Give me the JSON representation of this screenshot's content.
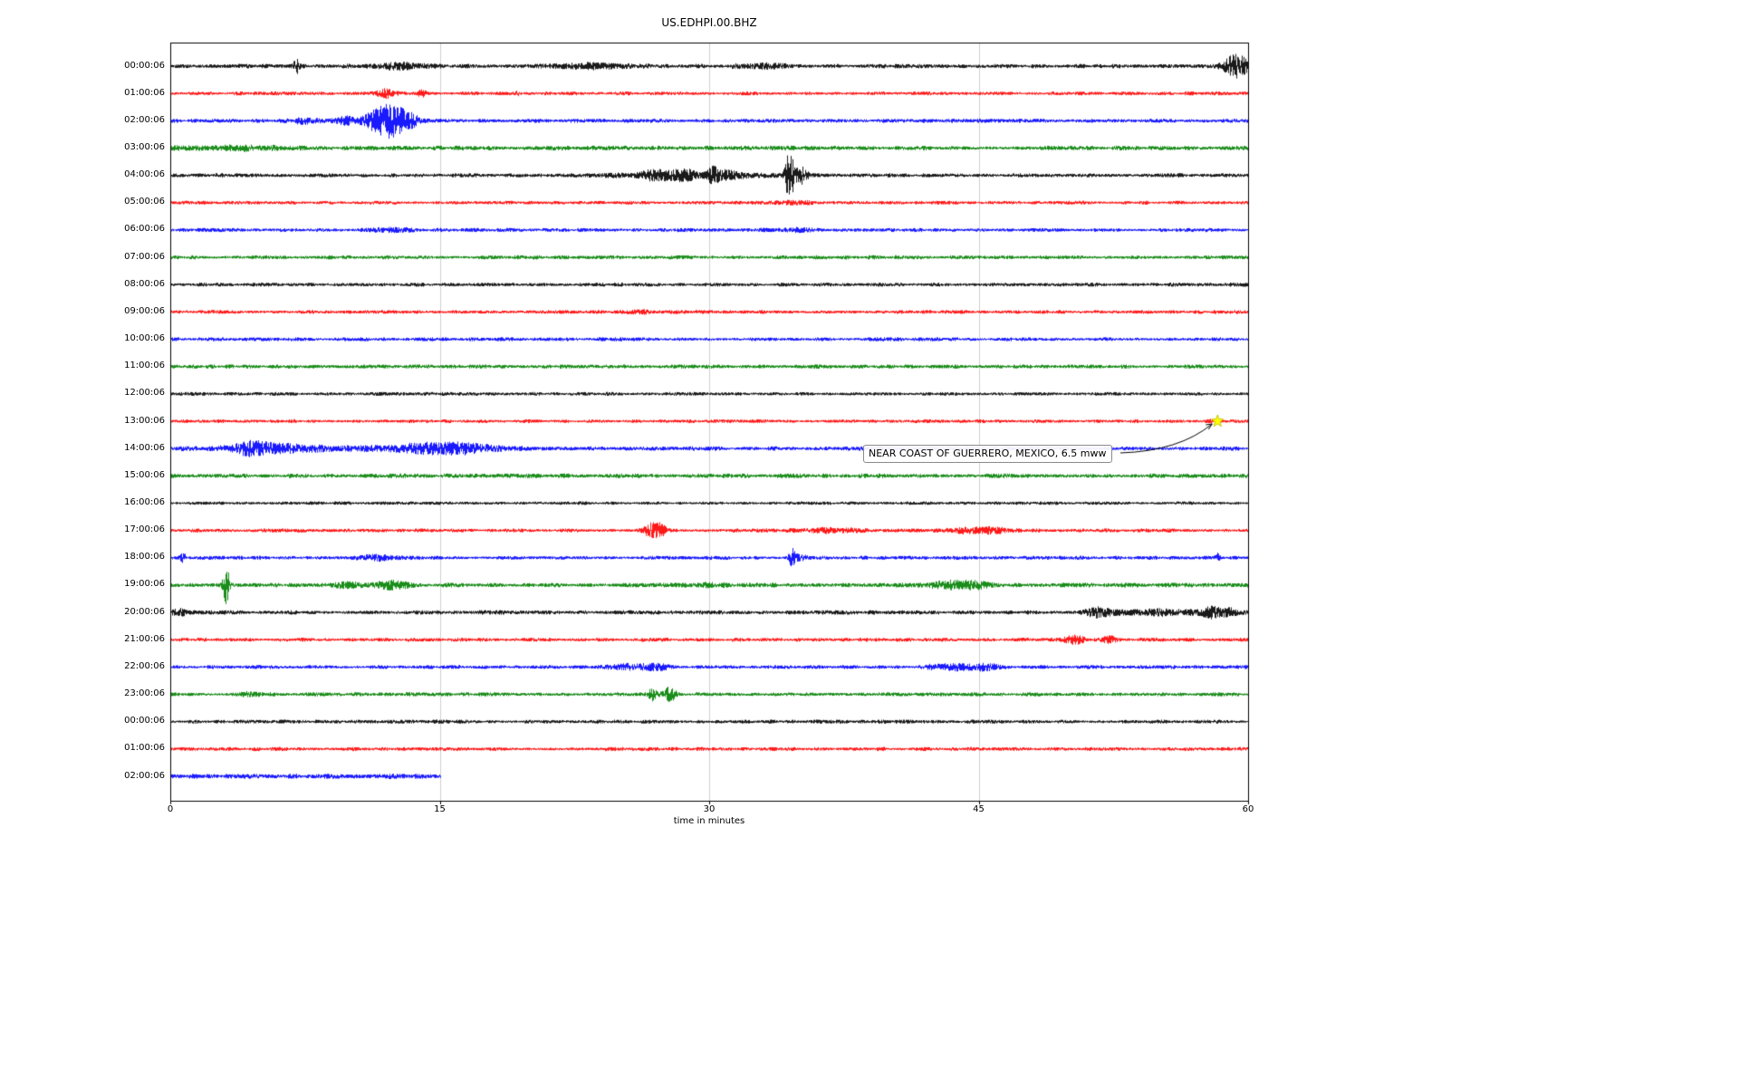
{
  "chart_data": {
    "type": "line",
    "title": "US.EDHPI.00.BHZ",
    "xlabel": "time in minutes",
    "xlim": [
      0,
      60
    ],
    "x_ticks": [
      0,
      15,
      30,
      45,
      60
    ],
    "grid": "vertical-only",
    "trace_colors": {
      "black": "#000000",
      "red": "#ff0000",
      "blue": "#0000ff",
      "green": "#008000"
    },
    "annotation": {
      "text": "NEAR COAST OF GUERRERO, MEXICO, 6.5 mww",
      "row_index": 13,
      "event_minute": 58.3,
      "marker": "star",
      "marker_color": "#ffff00"
    },
    "rows": [
      {
        "label": "00:00:06",
        "color": "#000000",
        "base": 2.0,
        "end": 60,
        "events": [
          {
            "t": 7.0,
            "w": 0.12,
            "a": 7
          },
          {
            "t": 12.7,
            "w": 1.1,
            "a": 3
          },
          {
            "t": 23.5,
            "w": 1.4,
            "a": 2.5
          },
          {
            "t": 33.0,
            "w": 1.0,
            "a": 2
          },
          {
            "t": 59.3,
            "w": 0.5,
            "a": 12
          }
        ]
      },
      {
        "label": "01:00:06",
        "color": "#ff0000",
        "base": 1.8,
        "end": 60,
        "events": [
          {
            "t": 12.0,
            "w": 0.3,
            "a": 5
          },
          {
            "t": 14.0,
            "w": 0.2,
            "a": 3
          },
          {
            "t": 19.3,
            "w": 0.1,
            "a": 2.5
          }
        ]
      },
      {
        "label": "02:00:06",
        "color": "#0000ff",
        "base": 1.9,
        "end": 60,
        "events": [
          {
            "t": 7.5,
            "w": 0.5,
            "a": 2.5
          },
          {
            "t": 9.7,
            "w": 0.4,
            "a": 4
          },
          {
            "t": 11.8,
            "w": 0.7,
            "a": 14
          },
          {
            "t": 12.6,
            "w": 0.45,
            "a": 10
          },
          {
            "t": 13.5,
            "w": 0.3,
            "a": 5
          }
        ]
      },
      {
        "label": "03:00:06",
        "color": "#008000",
        "base": 2.1,
        "end": 60,
        "events": [
          {
            "t": 2.0,
            "w": 2.0,
            "a": 1.3
          },
          {
            "t": 5.0,
            "w": 1.5,
            "a": 1.1
          }
        ]
      },
      {
        "label": "04:00:06",
        "color": "#000000",
        "base": 1.9,
        "end": 60,
        "events": [
          {
            "t": 27.0,
            "w": 0.6,
            "a": 4
          },
          {
            "t": 28.5,
            "w": 0.4,
            "a": 5
          },
          {
            "t": 29.0,
            "w": 3.0,
            "a": 2
          },
          {
            "t": 30.2,
            "w": 0.25,
            "a": 7
          },
          {
            "t": 31.0,
            "w": 0.5,
            "a": 3
          },
          {
            "t": 34.35,
            "w": 0.12,
            "a": 22
          },
          {
            "t": 34.6,
            "w": 0.1,
            "a": 16
          },
          {
            "t": 35.05,
            "w": 0.3,
            "a": 8
          }
        ]
      },
      {
        "label": "05:00:06",
        "color": "#ff0000",
        "base": 1.7,
        "end": 60,
        "events": [
          {
            "t": 34.5,
            "w": 0.8,
            "a": 1.4
          }
        ]
      },
      {
        "label": "06:00:06",
        "color": "#0000ff",
        "base": 1.8,
        "end": 60,
        "events": [
          {
            "t": 12.5,
            "w": 1.0,
            "a": 1.4
          },
          {
            "t": 34.5,
            "w": 0.8,
            "a": 1.4
          }
        ]
      },
      {
        "label": "07:00:06",
        "color": "#008000",
        "base": 1.9,
        "end": 60,
        "events": []
      },
      {
        "label": "08:00:06",
        "color": "#000000",
        "base": 1.8,
        "end": 60,
        "events": []
      },
      {
        "label": "09:00:06",
        "color": "#ff0000",
        "base": 1.8,
        "end": 60,
        "events": [
          {
            "t": 26.0,
            "w": 0.5,
            "a": 1.3
          }
        ]
      },
      {
        "label": "10:00:06",
        "color": "#0000ff",
        "base": 1.8,
        "end": 60,
        "events": []
      },
      {
        "label": "11:00:06",
        "color": "#008000",
        "base": 1.9,
        "end": 60,
        "events": []
      },
      {
        "label": "12:00:06",
        "color": "#000000",
        "base": 1.7,
        "end": 60,
        "events": []
      },
      {
        "label": "13:00:06",
        "color": "#ff0000",
        "base": 1.7,
        "end": 60,
        "events": [
          {
            "t": 58.0,
            "w": 0.2,
            "a": 1.4
          }
        ]
      },
      {
        "label": "14:00:06",
        "color": "#0000ff",
        "base": 2.0,
        "end": 60,
        "events": [
          {
            "t": 4.5,
            "w": 0.7,
            "a": 5
          },
          {
            "t": 6.0,
            "w": 1.5,
            "a": 3
          },
          {
            "t": 10.0,
            "w": 6.0,
            "a": 1.4
          },
          {
            "t": 14.5,
            "w": 1.4,
            "a": 4
          },
          {
            "t": 16.5,
            "w": 1.0,
            "a": 3
          }
        ]
      },
      {
        "label": "15:00:06",
        "color": "#008000",
        "base": 2.1,
        "end": 60,
        "events": []
      },
      {
        "label": "16:00:06",
        "color": "#000000",
        "base": 1.6,
        "end": 60,
        "events": []
      },
      {
        "label": "17:00:06",
        "color": "#ff0000",
        "base": 1.8,
        "end": 60,
        "events": [
          {
            "t": 26.8,
            "w": 0.35,
            "a": 7
          },
          {
            "t": 27.3,
            "w": 0.2,
            "a": 5
          },
          {
            "t": 36.5,
            "w": 1.2,
            "a": 2
          },
          {
            "t": 44.5,
            "w": 0.8,
            "a": 2.5
          },
          {
            "t": 46.0,
            "w": 0.6,
            "a": 2
          }
        ]
      },
      {
        "label": "18:00:06",
        "color": "#0000ff",
        "base": 1.8,
        "end": 60,
        "events": [
          {
            "t": 0.7,
            "w": 0.12,
            "a": 5
          },
          {
            "t": 11.5,
            "w": 0.8,
            "a": 2.5
          },
          {
            "t": 34.6,
            "w": 0.13,
            "a": 9
          },
          {
            "t": 35.0,
            "w": 0.3,
            "a": 3
          },
          {
            "t": 58.3,
            "w": 0.1,
            "a": 4
          }
        ]
      },
      {
        "label": "19:00:06",
        "color": "#008000",
        "base": 2.1,
        "end": 60,
        "events": [
          {
            "t": 3.1,
            "w": 0.13,
            "a": 20
          },
          {
            "t": 9.8,
            "w": 0.5,
            "a": 3
          },
          {
            "t": 12.3,
            "w": 0.7,
            "a": 3.5
          },
          {
            "t": 30.0,
            "w": 1.0,
            "a": 1.4
          },
          {
            "t": 43.3,
            "w": 0.8,
            "a": 3.5
          },
          {
            "t": 44.8,
            "w": 0.5,
            "a": 3
          }
        ]
      },
      {
        "label": "20:00:06",
        "color": "#000000",
        "base": 2.0,
        "end": 60,
        "events": [
          {
            "t": 0.5,
            "w": 0.3,
            "a": 3
          },
          {
            "t": 51.5,
            "w": 0.5,
            "a": 4
          },
          {
            "t": 55.0,
            "w": 2.0,
            "a": 2.5
          },
          {
            "t": 58.0,
            "w": 0.4,
            "a": 5
          },
          {
            "t": 59.0,
            "w": 0.3,
            "a": 4
          }
        ]
      },
      {
        "label": "21:00:06",
        "color": "#ff0000",
        "base": 1.8,
        "end": 60,
        "events": [
          {
            "t": 50.3,
            "w": 0.4,
            "a": 4
          },
          {
            "t": 52.3,
            "w": 0.3,
            "a": 3.5
          }
        ]
      },
      {
        "label": "22:00:06",
        "color": "#0000ff",
        "base": 1.8,
        "end": 60,
        "events": [
          {
            "t": 25.5,
            "w": 0.8,
            "a": 2.5
          },
          {
            "t": 27.0,
            "w": 0.6,
            "a": 2.5
          },
          {
            "t": 42.5,
            "w": 0.5,
            "a": 2.5
          },
          {
            "t": 44.0,
            "w": 0.6,
            "a": 3
          },
          {
            "t": 45.5,
            "w": 0.5,
            "a": 3.5
          }
        ]
      },
      {
        "label": "23:00:06",
        "color": "#008000",
        "base": 1.9,
        "end": 60,
        "events": [
          {
            "t": 4.5,
            "w": 0.5,
            "a": 2
          },
          {
            "t": 26.8,
            "w": 0.2,
            "a": 6
          },
          {
            "t": 27.8,
            "w": 0.25,
            "a": 7
          }
        ]
      },
      {
        "label": "00:00:06",
        "color": "#000000",
        "base": 1.8,
        "end": 60,
        "events": []
      },
      {
        "label": "01:00:06",
        "color": "#ff0000",
        "base": 1.8,
        "end": 60,
        "events": []
      },
      {
        "label": "02:00:06",
        "color": "#0000ff",
        "base": 2.5,
        "end": 15,
        "events": []
      }
    ]
  }
}
